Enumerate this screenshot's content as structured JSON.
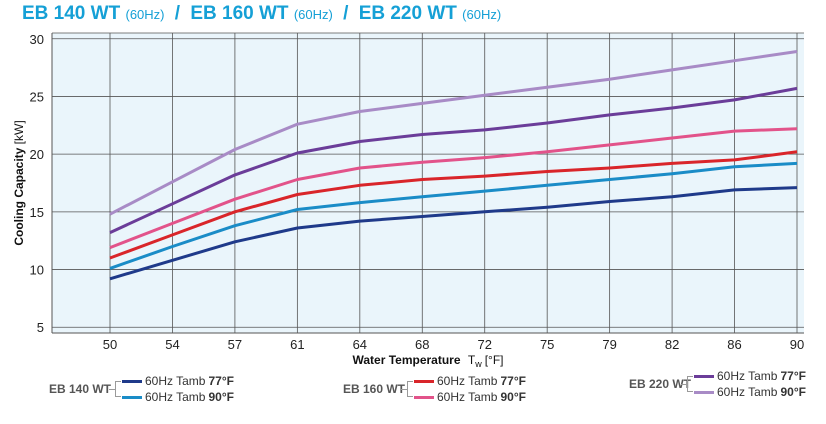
{
  "title": {
    "models": [
      {
        "name": "EB 140 WT",
        "hz": "(60Hz)"
      },
      {
        "name": "EB 160 WT",
        "hz": "(60Hz)"
      },
      {
        "name": "EB 220 WT",
        "hz": "(60Hz)"
      }
    ],
    "separator": "/"
  },
  "colors": {
    "title": "#15a0d6",
    "plot_background": "#eaf5fb",
    "grid": "#555555"
  },
  "chart_data": {
    "type": "line",
    "xlabel": "Water Temperature",
    "xlabel_symbol": "T",
    "xlabel_subscript": "w",
    "xlabel_unit": "[°F]",
    "ylabel": "Cooling Capacity",
    "ylabel_unit": "[kW]",
    "x": [
      50,
      54,
      57,
      61,
      64,
      68,
      72,
      75,
      79,
      82,
      86,
      90
    ],
    "x_tick_labels": [
      "50",
      "54",
      "57",
      "61",
      "64",
      "68",
      "72",
      "75",
      "79",
      "82",
      "86",
      "90"
    ],
    "x_spacing": "categorical-even",
    "yticks": [
      5,
      10,
      15,
      20,
      25,
      30
    ],
    "ylim": [
      4.5,
      30.5
    ],
    "grid": true,
    "legend_placement": "bottom",
    "series": [
      {
        "name": "60Hz Tamb 77°F",
        "group": "EB 140 WT",
        "color": "#1f3a8a",
        "values": [
          9.2,
          10.8,
          12.4,
          13.6,
          14.2,
          14.6,
          15.0,
          15.4,
          15.9,
          16.3,
          16.9,
          17.1
        ]
      },
      {
        "name": "60Hz Tamb 90°F",
        "group": "EB 140 WT",
        "color": "#1a8cc7",
        "values": [
          10.1,
          12.0,
          13.8,
          15.2,
          15.8,
          16.3,
          16.8,
          17.3,
          17.8,
          18.3,
          18.9,
          19.2
        ]
      },
      {
        "name": "60Hz Tamb 77°F",
        "group": "EB 160 WT",
        "color": "#d9252a",
        "values": [
          11.0,
          13.0,
          15.0,
          16.5,
          17.3,
          17.8,
          18.1,
          18.5,
          18.8,
          19.2,
          19.5,
          20.2
        ]
      },
      {
        "name": "60Hz Tamb 90°F",
        "group": "EB 160 WT",
        "color": "#e2538a",
        "values": [
          11.9,
          14.0,
          16.1,
          17.8,
          18.8,
          19.3,
          19.7,
          20.2,
          20.8,
          21.4,
          22.0,
          22.2
        ]
      },
      {
        "name": "60Hz Tamb 77°F",
        "group": "EB 220 WT",
        "color": "#6b3d99",
        "values": [
          13.2,
          15.7,
          18.2,
          20.1,
          21.1,
          21.7,
          22.1,
          22.7,
          23.4,
          24.0,
          24.7,
          25.7
        ]
      },
      {
        "name": "60Hz Tamb 90°F",
        "group": "EB 220 WT",
        "color": "#a88bc6",
        "values": [
          14.8,
          17.6,
          20.4,
          22.6,
          23.7,
          24.4,
          25.1,
          25.8,
          26.5,
          27.3,
          28.1,
          28.9
        ]
      }
    ]
  },
  "legend": [
    {
      "model": "EB 140 WT",
      "entries": [
        {
          "label": "60Hz Tamb",
          "temp": "77°F",
          "color": "#1f3a8a"
        },
        {
          "label": "60Hz Tamb",
          "temp": "90°F",
          "color": "#1a8cc7"
        }
      ]
    },
    {
      "model": "EB 160 WT",
      "entries": [
        {
          "label": "60Hz Tamb",
          "temp": "77°F",
          "color": "#d9252a"
        },
        {
          "label": "60Hz Tamb",
          "temp": "90°F",
          "color": "#e2538a"
        }
      ]
    },
    {
      "model": "EB 220 WT",
      "entries": [
        {
          "label": "60Hz Tamb",
          "temp": "77°F",
          "color": "#6b3d99"
        },
        {
          "label": "60Hz Tamb",
          "temp": "90°F",
          "color": "#a88bc6"
        }
      ]
    }
  ]
}
